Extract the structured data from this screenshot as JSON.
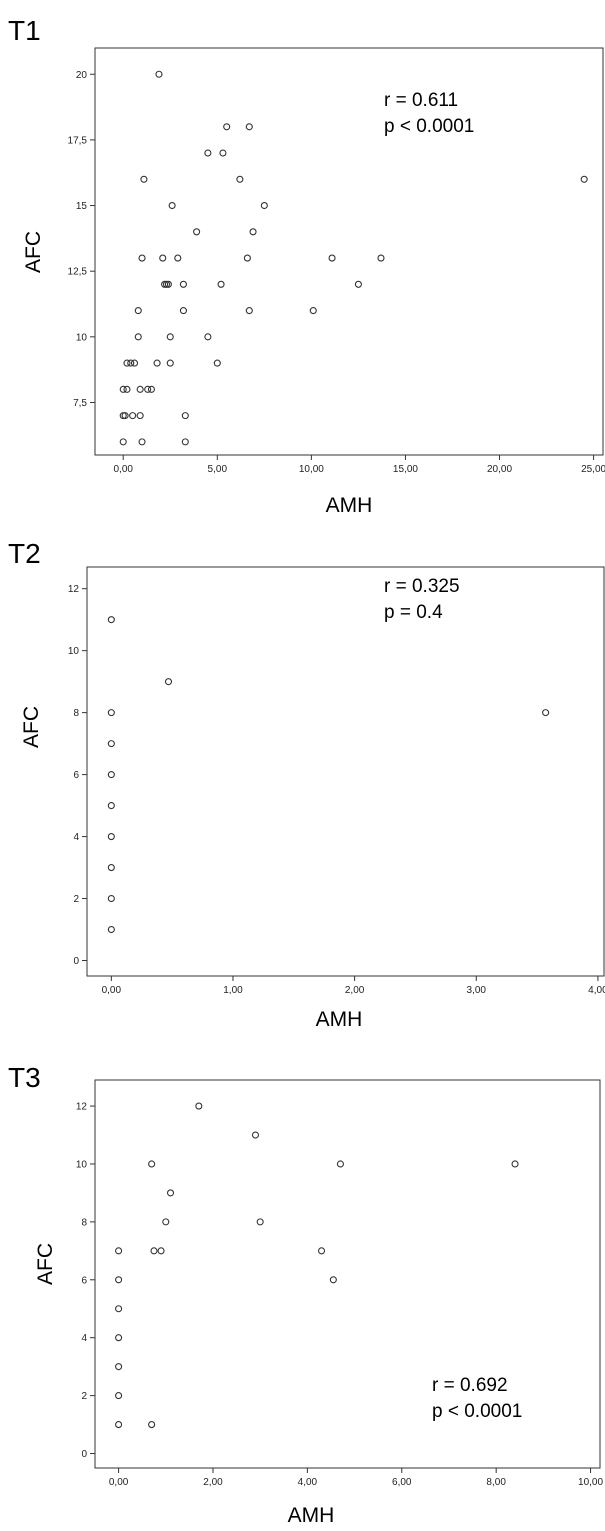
{
  "chart_data": [
    {
      "type": "scatter",
      "panel_label": "T1",
      "xlabel": "AMH",
      "ylabel": "AFC",
      "xlim": [
        -1.5,
        25.5
      ],
      "ylim": [
        5.5,
        21
      ],
      "xticks": [
        0,
        5,
        10,
        15,
        20,
        25
      ],
      "xtick_labels": [
        "0,00",
        "5,00",
        "10,00",
        "15,00",
        "20,00",
        "25,00"
      ],
      "yticks": [
        7.5,
        10,
        12.5,
        15,
        17.5,
        20
      ],
      "ytick_labels": [
        "7,5",
        "10",
        "12,5",
        "15",
        "17,5",
        "20"
      ],
      "annotation": [
        "r = 0.611",
        "p < 0.0001"
      ],
      "points": [
        [
          1.9,
          20
        ],
        [
          5.5,
          18
        ],
        [
          6.7,
          18
        ],
        [
          4.5,
          17
        ],
        [
          5.3,
          17
        ],
        [
          1.1,
          16
        ],
        [
          6.2,
          16
        ],
        [
          24.5,
          16
        ],
        [
          2.6,
          15
        ],
        [
          7.5,
          15
        ],
        [
          3.9,
          14
        ],
        [
          6.9,
          14
        ],
        [
          1.0,
          13
        ],
        [
          2.1,
          13
        ],
        [
          2.9,
          13
        ],
        [
          6.6,
          13
        ],
        [
          11.1,
          13
        ],
        [
          13.7,
          13
        ],
        [
          2.2,
          12
        ],
        [
          2.4,
          12
        ],
        [
          2.3,
          12
        ],
        [
          3.2,
          12
        ],
        [
          5.2,
          12
        ],
        [
          12.5,
          12
        ],
        [
          0.8,
          11
        ],
        [
          3.2,
          11
        ],
        [
          6.7,
          11
        ],
        [
          10.1,
          11
        ],
        [
          0.8,
          10
        ],
        [
          2.5,
          10
        ],
        [
          4.5,
          10
        ],
        [
          0.2,
          9
        ],
        [
          0.4,
          9
        ],
        [
          0.6,
          9
        ],
        [
          1.8,
          9
        ],
        [
          2.5,
          9
        ],
        [
          5.0,
          9
        ],
        [
          0.0,
          8
        ],
        [
          0.2,
          8
        ],
        [
          0.9,
          8
        ],
        [
          1.3,
          8
        ],
        [
          1.5,
          8
        ],
        [
          0.0,
          7
        ],
        [
          0.1,
          7
        ],
        [
          0.5,
          7
        ],
        [
          0.9,
          7
        ],
        [
          3.3,
          7
        ],
        [
          0.0,
          6
        ],
        [
          1.0,
          6
        ],
        [
          3.3,
          6
        ]
      ]
    },
    {
      "type": "scatter",
      "panel_label": "T2",
      "xlabel": "AMH",
      "ylabel": "AFC",
      "xlim": [
        -0.2,
        4.05
      ],
      "ylim": [
        -0.5,
        12.7
      ],
      "xticks": [
        0,
        1,
        2,
        3,
        4
      ],
      "xtick_labels": [
        "0,00",
        "1,00",
        "2,00",
        "3,00",
        "4,00"
      ],
      "yticks": [
        0,
        2,
        4,
        6,
        8,
        10,
        12
      ],
      "ytick_labels": [
        "0",
        "2",
        "4",
        "6",
        "8",
        "10",
        "12"
      ],
      "annotation": [
        "r = 0.325",
        "p = 0.4"
      ],
      "points": [
        [
          0.0,
          11
        ],
        [
          0.47,
          9
        ],
        [
          3.57,
          8
        ],
        [
          0.0,
          8
        ],
        [
          0.0,
          7
        ],
        [
          0.0,
          6
        ],
        [
          0.0,
          5
        ],
        [
          0.0,
          4
        ],
        [
          0.0,
          3
        ],
        [
          0.0,
          2
        ],
        [
          0.0,
          1
        ]
      ]
    },
    {
      "type": "scatter",
      "panel_label": "T3",
      "xlabel": "AMH",
      "ylabel": "AFC",
      "xlim": [
        -0.5,
        10.2
      ],
      "ylim": [
        -0.5,
        12.9
      ],
      "xticks": [
        0,
        2,
        4,
        6,
        8,
        10
      ],
      "xtick_labels": [
        "0,00",
        "2,00",
        "4,00",
        "6,00",
        "8,00",
        "10,00"
      ],
      "yticks": [
        0,
        2,
        4,
        6,
        8,
        10,
        12
      ],
      "ytick_labels": [
        "0",
        "2",
        "4",
        "6",
        "8",
        "10",
        "12"
      ],
      "annotation": [
        "r = 0.692",
        "p < 0.0001"
      ],
      "points": [
        [
          1.7,
          12
        ],
        [
          2.9,
          11
        ],
        [
          0.7,
          10
        ],
        [
          4.7,
          10
        ],
        [
          8.4,
          10
        ],
        [
          1.1,
          9
        ],
        [
          1.0,
          8
        ],
        [
          3.0,
          8
        ],
        [
          0.75,
          7
        ],
        [
          0.9,
          7
        ],
        [
          4.3,
          7
        ],
        [
          4.55,
          6
        ],
        [
          0.7,
          1
        ],
        [
          0.0,
          7
        ],
        [
          0.0,
          6
        ],
        [
          0.0,
          5
        ],
        [
          0.0,
          4
        ],
        [
          0.0,
          3
        ],
        [
          0.0,
          2
        ],
        [
          0.0,
          1
        ]
      ]
    }
  ]
}
